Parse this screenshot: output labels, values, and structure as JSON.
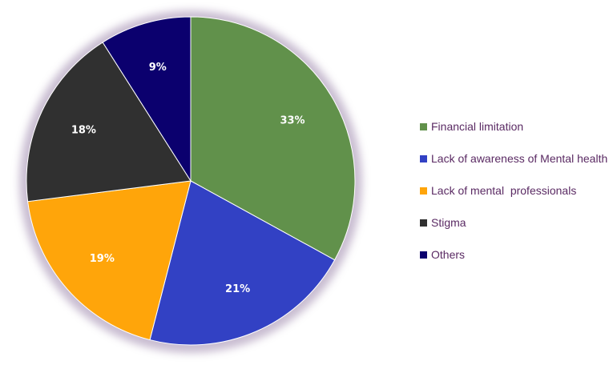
{
  "chart_data": {
    "type": "pie",
    "start_angle_deg": 0,
    "direction": "clockwise",
    "legend_position": "right",
    "slices": [
      {
        "label": "Financial limitation",
        "value": 33,
        "value_label": "33%",
        "color": "#61914b"
      },
      {
        "label": "Lack of awareness of Mental health",
        "value": 21,
        "value_label": "21%",
        "color": "#3241c4"
      },
      {
        "label": "Lack of mental  professionals",
        "value": 19,
        "value_label": "19%",
        "color": "#ffa50a"
      },
      {
        "label": "Stigma",
        "value": 18,
        "value_label": "18%",
        "color": "#303030"
      },
      {
        "label": "Others",
        "value": 9,
        "value_label": "9%",
        "color": "#0b006e"
      }
    ]
  }
}
